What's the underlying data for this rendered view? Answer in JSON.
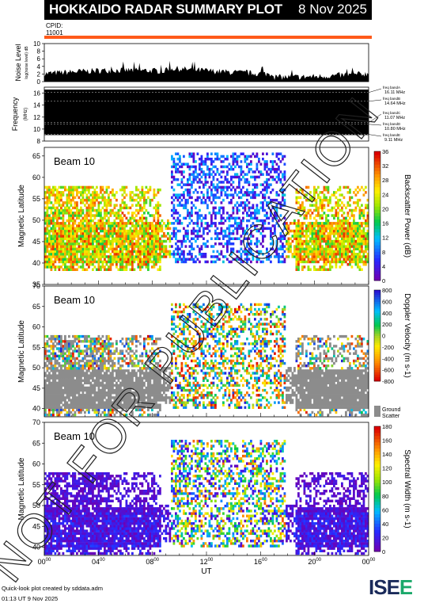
{
  "header": {
    "title": "HOKKAIDO RADAR SUMMARY PLOT",
    "date": "8 Nov 2025"
  },
  "cpid": {
    "label": "CPID:",
    "value": "11001"
  },
  "colors": {
    "accent_bar": "#ff5a1a",
    "ground_scatter": "#8c8c8c",
    "header_bg": "#000000"
  },
  "chart_data": [
    {
      "type": "area",
      "ylabel": "Noise Level",
      "ylabel_sub": "log(noise level) dB",
      "ylim": [
        0,
        10
      ],
      "y_ticks": [
        "0",
        "2",
        "4",
        "6",
        "8",
        "10"
      ],
      "grid": false
    },
    {
      "type": "heatmap",
      "ylabel": "Frequency",
      "ylabel_unit": "(MHz)",
      "ylim": [
        8,
        17
      ],
      "y_ticks": [
        "8",
        "10",
        "12",
        "14",
        "16"
      ],
      "freq_bands": [
        {
          "label": "freq bandA",
          "value": "16.11 MHz"
        },
        {
          "label": "freq bandB",
          "value": "14.64 MHz"
        },
        {
          "label": "freq bandC",
          "value": "11.07 MHz"
        },
        {
          "label": "freq bandD",
          "value": "10.80 MHz"
        },
        {
          "label": "freq bandE",
          "value": "9.11 MHz"
        }
      ]
    },
    {
      "type": "heatmap",
      "beam_label": "Beam 10",
      "ylabel": "Magnetic Latitude",
      "ylim": [
        35,
        67
      ],
      "y_ticks": [
        "35",
        "40",
        "45",
        "50",
        "55",
        "60",
        "65"
      ],
      "colorbar_label": "Backscatter Power (dB)",
      "colorbar_ticks": [
        "0",
        "4",
        "8",
        "12",
        "16",
        "20",
        "24",
        "28",
        "32",
        "36"
      ],
      "colorbar_range": [
        0,
        36
      ]
    },
    {
      "type": "heatmap",
      "beam_label": "Beam 10",
      "ylabel": "Magnetic Latitude",
      "ylim": [
        38,
        70
      ],
      "y_ticks": [
        "40",
        "45",
        "50",
        "55",
        "60",
        "65",
        "70"
      ],
      "colorbar_label": "Doppler Velocity (m s-1)",
      "colorbar_ticks": [
        "-800",
        "-600",
        "-400",
        "-200",
        "0",
        "200",
        "400",
        "600",
        "800"
      ],
      "colorbar_range": [
        -800,
        800
      ],
      "ground_scatter_label": "Ground Scatter"
    },
    {
      "type": "heatmap",
      "beam_label": "Beam 10",
      "ylabel": "Magnetic Latitude",
      "ylim": [
        38,
        70
      ],
      "y_ticks": [
        "40",
        "45",
        "50",
        "55",
        "60",
        "65",
        "70"
      ],
      "colorbar_label": "Spectral Width (m s-1)",
      "colorbar_ticks": [
        "0",
        "20",
        "40",
        "60",
        "80",
        "100",
        "120",
        "140",
        "160",
        "180"
      ],
      "colorbar_range": [
        0,
        180
      ],
      "xlabel": "UT",
      "x_ticks": [
        "00",
        "04",
        "08",
        "12",
        "16",
        "20",
        "00"
      ],
      "x_range_hours": [
        0,
        24
      ]
    }
  ],
  "watermark": "NOT FOR PUBLICATION",
  "footer": {
    "line1": "Quick-look plot created by sddata.adm",
    "line2": "01:13 UT  9 Nov 2025"
  },
  "logo": {
    "text": "ISEE"
  }
}
